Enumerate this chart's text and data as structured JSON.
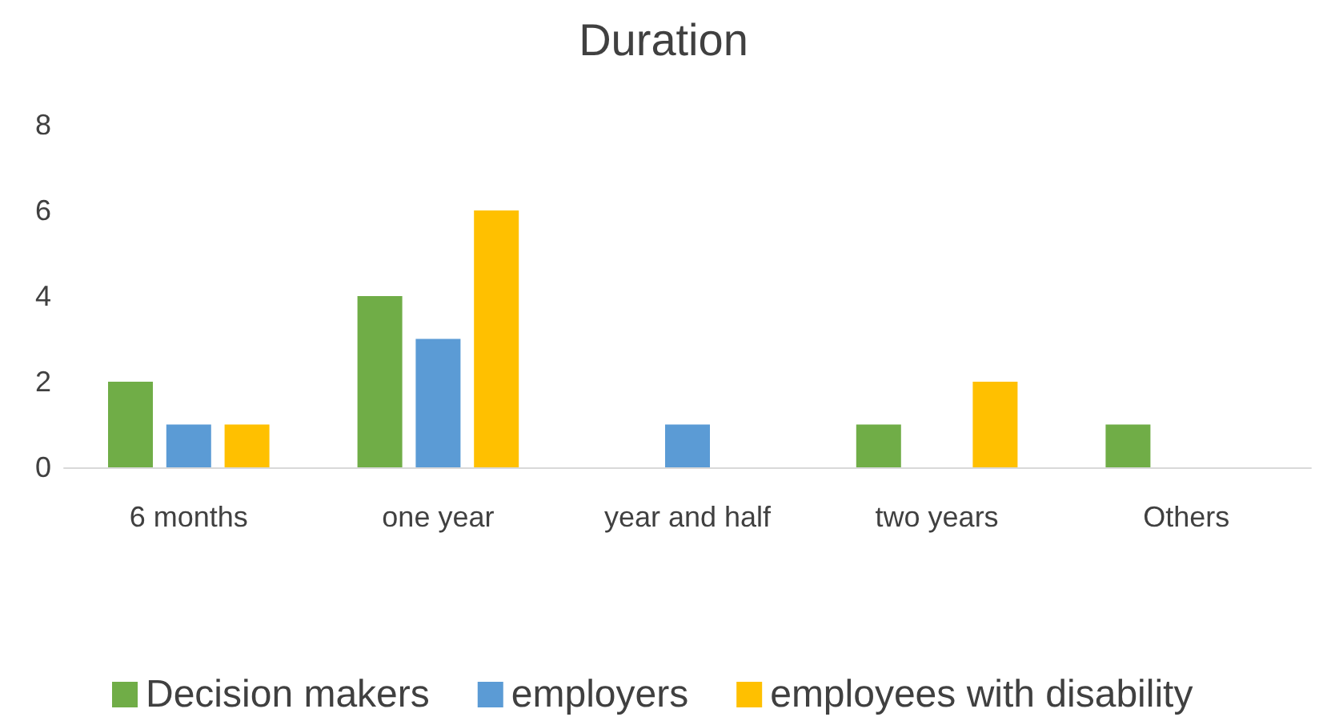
{
  "chart_data": {
    "type": "bar",
    "title": "Duration",
    "categories": [
      "6 months",
      "one year",
      "year and half",
      "two years",
      "Others"
    ],
    "series": [
      {
        "name": "Decision makers",
        "color": "#70ad47",
        "values": [
          2,
          4,
          0,
          1,
          1
        ]
      },
      {
        "name": "employers",
        "color": "#5b9bd5",
        "values": [
          1,
          3,
          1,
          0,
          0
        ]
      },
      {
        "name": "employees with disability",
        "color": "#ffc000",
        "values": [
          1,
          6,
          0,
          2,
          0
        ]
      }
    ],
    "ylim": [
      0,
      8
    ],
    "yticks": [
      0,
      2,
      4,
      6,
      8
    ],
    "grid": false,
    "legend": "bottom"
  }
}
